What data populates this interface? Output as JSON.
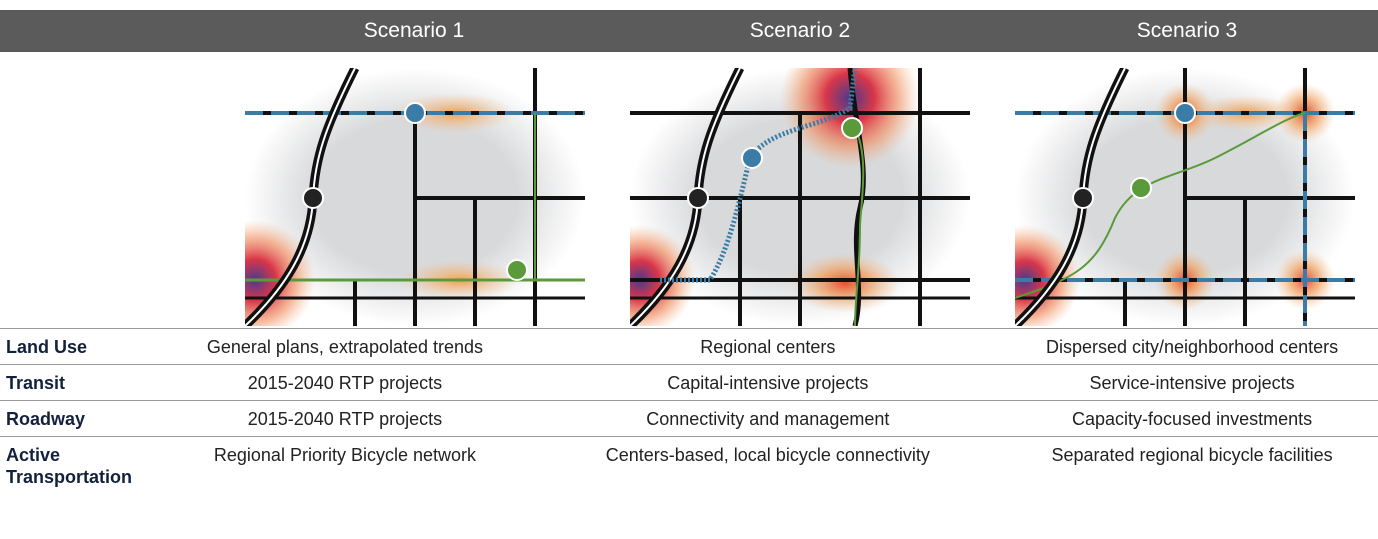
{
  "header": {
    "columns": [
      "Scenario 1",
      "Scenario 2",
      "Scenario 3"
    ]
  },
  "table": {
    "rows": [
      [
        "Land Use",
        "General plans, extrapolated trends",
        "Regional centers",
        "Dispersed city/neighborhood centers"
      ],
      [
        "Transit",
        "2015-2040 RTP projects",
        "Capital-intensive projects",
        "Service-intensive projects"
      ],
      [
        "Roadway",
        "2015-2040 RTP projects",
        "Connectivity and management",
        "Capacity-focused investments"
      ],
      [
        "Active Transportation",
        "Regional Priority Bicycle network",
        "Centers-based, local bicycle connectivity",
        "Separated regional bicycle facilities"
      ]
    ]
  }
}
